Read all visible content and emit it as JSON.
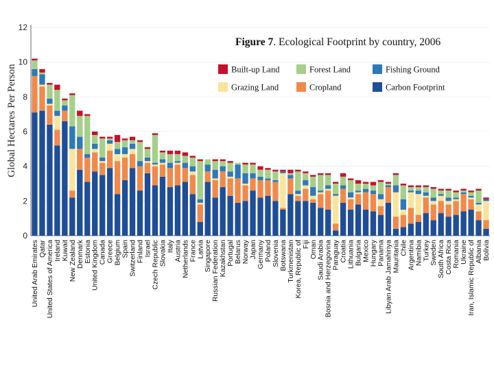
{
  "chart_data": {
    "type": "bar",
    "stacked": true,
    "title_bold": "Figure 7",
    "title_rest": ". Ecological Footprint by country, 2006",
    "xlabel": "",
    "ylabel": "Global Hectares Per Person",
    "ylim": [
      0,
      12
    ],
    "yticks": [
      "0",
      "2",
      "4",
      "6",
      "8",
      "10",
      "12"
    ],
    "legend_position": "top-right",
    "categories": [
      "United Arab Emirates",
      "Qatar",
      "United States of America",
      "Ireland",
      "Kuwait",
      "New Zealand",
      "Denmark",
      "Estonia",
      "United Kingdom",
      "Canada",
      "Greece",
      "Belgium",
      "Spain",
      "Switzerland",
      "Finland",
      "Israel",
      "Czech Republic",
      "Slovakia",
      "Italy",
      "Austria",
      "Netherlands",
      "France",
      "Latvia",
      "Singapore",
      "Russian Federation",
      "Kazakhstan",
      "Portugal",
      "Belarus",
      "Norway",
      "Japan",
      "Germany",
      "Poland",
      "Slovenia",
      "Botswana",
      "Turkmenistan",
      "Korea, Republic of",
      "Fiji",
      "Oman",
      "Saudi Arabia",
      "Bosnia and Herzegovina",
      "Paraguay",
      "Croatia",
      "Lithuania",
      "Bulgaria",
      "Mexico",
      "Hungary",
      "Panama",
      "Libyan Arab Jamahiriya",
      "Mauritania",
      "Chile",
      "Argentina",
      "Namibia",
      "Turkey",
      "Sweden",
      "South Africa",
      "Costa Rica",
      "Romania",
      "Ukraine",
      "Iran, Islamic Republic of",
      "Albania",
      "Bolivia"
    ],
    "series": [
      {
        "name": "Carbon Footprint",
        "color": "#1f4e96",
        "values": [
          7.1,
          7.2,
          6.4,
          5.2,
          6.6,
          2.2,
          3.8,
          3.1,
          3.7,
          3.5,
          3.9,
          2.4,
          3.2,
          3.9,
          2.6,
          3.6,
          2.9,
          3.4,
          2.8,
          2.9,
          3.1,
          2.4,
          0.8,
          3.1,
          2.2,
          2.8,
          2.3,
          1.9,
          2.0,
          2.6,
          2.2,
          2.3,
          2.0,
          1.5,
          2.4,
          2.0,
          2.0,
          1.9,
          1.6,
          1.5,
          0.3,
          1.9,
          1.5,
          1.8,
          1.5,
          1.4,
          1.2,
          1.9,
          0.4,
          0.5,
          0.7,
          0.8,
          1.3,
          0.9,
          1.3,
          1.1,
          1.2,
          1.4,
          1.5,
          0.9,
          0.4
        ]
      },
      {
        "name": "Cropland",
        "color": "#f08a4b",
        "values": [
          2.1,
          1.4,
          1.1,
          0.9,
          0.6,
          0.4,
          1.2,
          1.4,
          1.1,
          0.7,
          1.0,
          1.9,
          1.3,
          0.8,
          1.4,
          0.6,
          1.1,
          0.7,
          1.1,
          1.2,
          0.8,
          1.1,
          1.0,
          0.6,
          1.0,
          0.9,
          1.0,
          1.4,
          0.9,
          0.7,
          1.0,
          0.9,
          1.1,
          0.1,
          0.9,
          0.3,
          0.7,
          0.2,
          0.8,
          1.1,
          0.4,
          0.8,
          0.6,
          0.6,
          1.0,
          1.0,
          0.5,
          0.9,
          0.7,
          0.7,
          0.9,
          0.4,
          0.9,
          0.9,
          0.7,
          0.7,
          0.8,
          1.0,
          0.6,
          0.5,
          0.5
        ]
      },
      {
        "name": "Grazing Land",
        "color": "#f9e49b",
        "values": [
          0.0,
          0.1,
          0.1,
          0.8,
          0.0,
          2.4,
          0.0,
          0.0,
          0.2,
          0.1,
          0.4,
          0.4,
          0.2,
          0.3,
          0.0,
          0.1,
          0.1,
          0.1,
          0.0,
          0.1,
          0.0,
          0.2,
          0.1,
          0.0,
          0.1,
          0.0,
          0.1,
          0.0,
          0.1,
          0.0,
          0.0,
          0.0,
          0.0,
          2.0,
          0.0,
          0.1,
          0.2,
          0.2,
          0.1,
          0.1,
          1.6,
          0.0,
          0.1,
          0.1,
          0.0,
          0.0,
          0.4,
          0.0,
          1.4,
          0.3,
          0.9,
          1.2,
          0.1,
          0.2,
          0.3,
          0.2,
          0.1,
          0.0,
          0.1,
          0.4,
          1.1
        ]
      },
      {
        "name": "Fishing Ground",
        "color": "#2e79b8",
        "values": [
          0.4,
          0.6,
          0.3,
          0.3,
          0.3,
          1.3,
          0.7,
          0.2,
          0.3,
          0.2,
          0.2,
          0.3,
          0.4,
          0.3,
          0.3,
          0.2,
          0.1,
          0.2,
          0.3,
          0.1,
          0.3,
          0.3,
          0.2,
          0.4,
          0.5,
          0.3,
          0.3,
          0.8,
          0.6,
          0.3,
          0.2,
          0.1,
          0.1,
          0.1,
          0.2,
          0.2,
          0.3,
          0.5,
          0.1,
          0.2,
          0.1,
          0.2,
          0.3,
          0.1,
          0.2,
          0.2,
          0.3,
          0.1,
          0.4,
          0.6,
          0.1,
          0.2,
          0.2,
          0.2,
          0.1,
          0.2,
          0.1,
          0.1,
          0.1,
          0.1,
          0.1
        ]
      },
      {
        "name": "Forest Land",
        "color": "#a6cf8a",
        "values": [
          0.5,
          0.1,
          0.8,
          1.2,
          0.3,
          1.8,
          1.2,
          2.2,
          0.5,
          1.1,
          0.1,
          0.4,
          0.4,
          0.2,
          1.1,
          0.5,
          1.6,
          0.4,
          0.5,
          0.4,
          0.4,
          0.5,
          2.2,
          0.3,
          0.5,
          0.3,
          0.5,
          0.1,
          0.5,
          0.5,
          0.4,
          0.5,
          0.5,
          0.0,
          0.1,
          1.1,
          0.4,
          0.6,
          0.9,
          0.6,
          0.6,
          0.5,
          0.7,
          0.4,
          0.3,
          0.3,
          0.7,
          0.1,
          0.6,
          0.8,
          0.2,
          0.2,
          0.3,
          0.5,
          0.2,
          0.4,
          0.3,
          0.1,
          0.2,
          0.7,
          0.0
        ]
      },
      {
        "name": "Built-up Land",
        "color": "#c8102e",
        "values": [
          0.1,
          0.2,
          0.1,
          0.3,
          0.1,
          0.1,
          0.3,
          0.1,
          0.2,
          0.1,
          0.1,
          0.4,
          0.1,
          0.2,
          0.1,
          0.1,
          0.1,
          0.1,
          0.2,
          0.2,
          0.2,
          0.1,
          0.1,
          0.0,
          0.1,
          0.1,
          0.1,
          0.0,
          0.1,
          0.1,
          0.2,
          0.1,
          0.1,
          0.1,
          0.2,
          0.1,
          0.1,
          0.1,
          0.1,
          0.1,
          0.1,
          0.2,
          0.1,
          0.2,
          0.1,
          0.2,
          0.1,
          0.1,
          0.1,
          0.1,
          0.1,
          0.1,
          0.1,
          0.1,
          0.1,
          0.1,
          0.1,
          0.1,
          0.1,
          0.1,
          0.1
        ]
      }
    ],
    "legend": [
      {
        "name": "Built-up Land",
        "color": "#c8102e"
      },
      {
        "name": "Forest Land",
        "color": "#a6cf8a"
      },
      {
        "name": "Fishing Ground",
        "color": "#2e79b8"
      },
      {
        "name": "Grazing Land",
        "color": "#f9e49b"
      },
      {
        "name": "Cropland",
        "color": "#f08a4b"
      },
      {
        "name": "Carbon Footprint",
        "color": "#1f4e96"
      }
    ]
  }
}
